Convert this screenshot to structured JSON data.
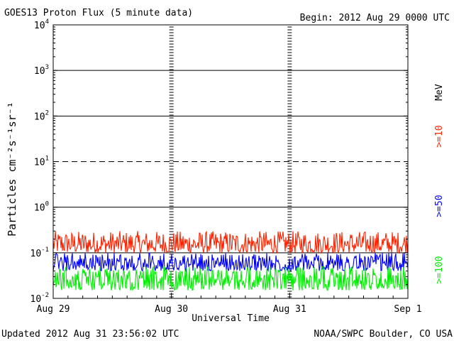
{
  "chart_data": {
    "type": "line",
    "title": "GOES13 Proton Flux (5 minute data)",
    "begin_label": "Begin: 2012 Aug 29 0000 UTC",
    "xlabel": "Universal Time",
    "ylabel": "Particles cm⁻²s⁻¹sr⁻¹",
    "yscale": "log",
    "ylim": [
      0.01,
      10000
    ],
    "y_ticks": [
      {
        "value": 10000,
        "base": "10",
        "exp": "4"
      },
      {
        "value": 1000,
        "base": "10",
        "exp": "3"
      },
      {
        "value": 100,
        "base": "10",
        "exp": "2"
      },
      {
        "value": 10,
        "base": "10",
        "exp": "1"
      },
      {
        "value": 1,
        "base": "10",
        "exp": "0"
      },
      {
        "value": 0.1,
        "base": "10",
        "exp": "-1"
      },
      {
        "value": 0.01,
        "base": "10",
        "exp": "-2"
      }
    ],
    "x_ticks": [
      "Aug 29",
      "Aug 30",
      "Aug 31",
      "Sep 1"
    ],
    "xlim": [
      "2012-08-29",
      "2012-09-01"
    ],
    "threshold_lines": [
      {
        "value": 1000,
        "style": "solid"
      },
      {
        "value": 100,
        "style": "solid"
      },
      {
        "value": 10,
        "style": "dashed"
      },
      {
        "value": 1,
        "style": "solid"
      },
      {
        "value": 0.1,
        "style": "solid"
      }
    ],
    "series": [
      {
        "name": ">=10 MeV",
        "color": "#ff2200",
        "band": [
          0.1,
          0.3
        ],
        "typical": 0.15
      },
      {
        "name": ">=50 MeV",
        "color": "#0000ff",
        "band": [
          0.04,
          0.1
        ],
        "typical": 0.06
      },
      {
        "name": ">=100 MeV",
        "color": "#00ee00",
        "band": [
          0.015,
          0.05
        ],
        "typical": 0.025
      }
    ],
    "legend": {
      "unit": "MeV",
      "items": [
        ">=10",
        ">=50",
        ">=100"
      ]
    }
  },
  "footer": {
    "updated": "Updated 2012 Aug 31 23:56:02 UTC",
    "source": "NOAA/SWPC Boulder, CO USA"
  }
}
